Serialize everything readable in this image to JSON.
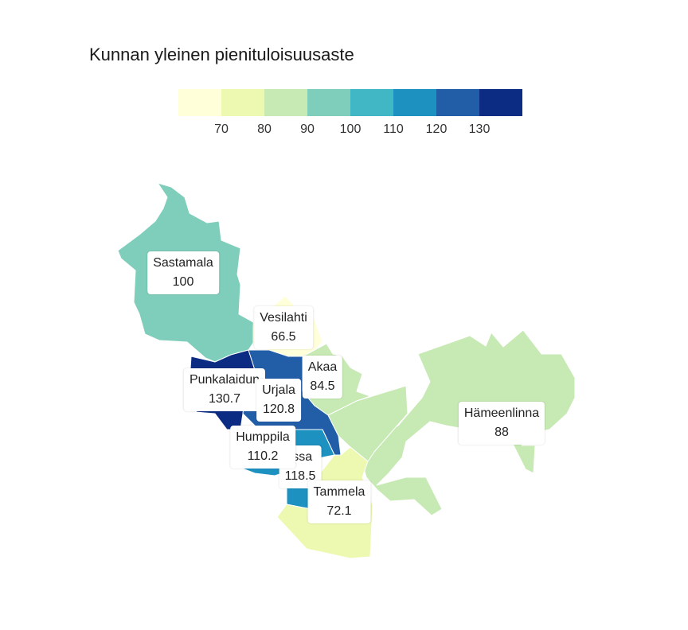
{
  "title": "Kunnan yleinen pienituloisuusaste",
  "legend": {
    "colors": [
      "#ffffd9",
      "#edf8b1",
      "#c7e9b4",
      "#7fcdbb",
      "#41b6c4",
      "#1d91c0",
      "#225ea8",
      "#0c2c84"
    ],
    "ticks": [
      "70",
      "80",
      "90",
      "100",
      "110",
      "120",
      "130"
    ]
  },
  "municipalities": [
    {
      "name": "Sastamala",
      "value": "100"
    },
    {
      "name": "Vesilahti",
      "value": "66.5"
    },
    {
      "name": "Akaa",
      "value": "84.5"
    },
    {
      "name": "Punkalaidun",
      "value": "130.7"
    },
    {
      "name": "Urjala",
      "value": "120.8"
    },
    {
      "name": "Hämeenlinna",
      "value": "88"
    },
    {
      "name": "Humppila",
      "value": "110.2"
    },
    {
      "name": "rssa",
      "value": "118.5"
    },
    {
      "name": "Tammela",
      "value": "72.1"
    }
  ]
}
